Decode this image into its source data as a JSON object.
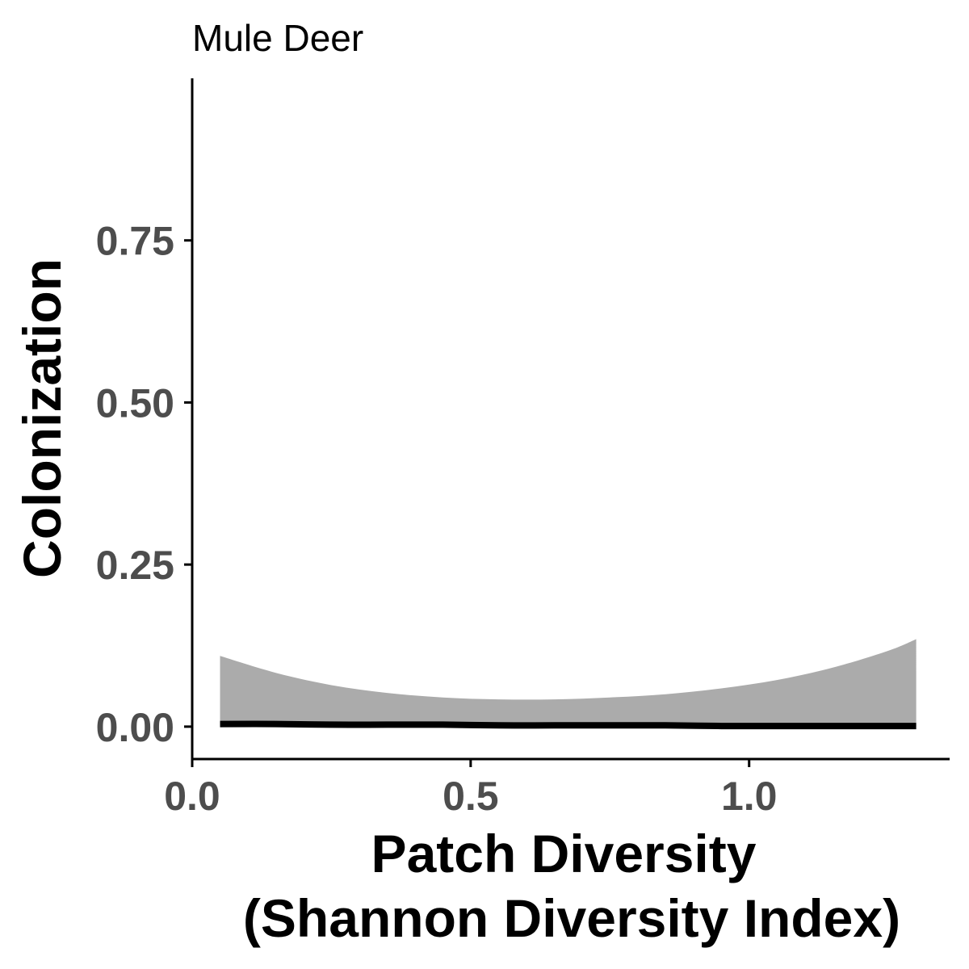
{
  "chart_data": {
    "type": "line",
    "title": "Mule Deer",
    "xlabel_lines": [
      "Patch Diversity",
      "(Shannon Diversity Index)"
    ],
    "ylabel": "Colonization",
    "xlim": [
      0.0,
      1.36
    ],
    "ylim": [
      -0.05,
      1.0
    ],
    "x_ticks": [
      0.0,
      0.5,
      1.0
    ],
    "x_tick_labels": [
      "0.0",
      "0.5",
      "1.0"
    ],
    "y_ticks": [
      0.0,
      0.25,
      0.5,
      0.75
    ],
    "y_tick_labels": [
      "0.00",
      "0.25",
      "0.50",
      "0.75"
    ],
    "grid": false,
    "legend": "none",
    "series": [
      {
        "x": [
          0.05,
          0.15,
          0.25,
          0.35,
          0.45,
          0.55,
          0.65,
          0.75,
          0.85,
          0.95,
          1.05,
          1.15,
          1.25,
          1.3
        ],
        "y": [
          0.004,
          0.004,
          0.003,
          0.003,
          0.003,
          0.002,
          0.002,
          0.002,
          0.002,
          0.001,
          0.001,
          0.001,
          0.001,
          0.001
        ],
        "lower": [
          0.0,
          0.0,
          0.0,
          0.0,
          0.0,
          0.0,
          0.0,
          0.0,
          0.0,
          0.0,
          0.0,
          0.0,
          0.0,
          0.0
        ],
        "upper": [
          0.109,
          0.083,
          0.064,
          0.052,
          0.045,
          0.042,
          0.042,
          0.045,
          0.05,
          0.059,
          0.072,
          0.091,
          0.117,
          0.135
        ]
      }
    ],
    "colors": {
      "ribbon": "#ababab",
      "line": "#000000",
      "axis": "#000000",
      "tick_label": "#4d4d4d"
    }
  }
}
